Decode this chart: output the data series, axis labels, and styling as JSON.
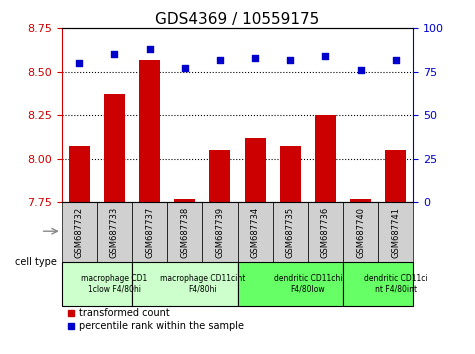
{
  "title": "GDS4369 / 10559175",
  "samples": [
    "GSM687732",
    "GSM687733",
    "GSM687737",
    "GSM687738",
    "GSM687739",
    "GSM687734",
    "GSM687735",
    "GSM687736",
    "GSM687740",
    "GSM687741"
  ],
  "bar_values": [
    8.07,
    8.37,
    8.57,
    7.77,
    8.05,
    8.12,
    8.07,
    8.25,
    7.77,
    8.05
  ],
  "dot_values": [
    80,
    85,
    88,
    77,
    82,
    83,
    82,
    84,
    76,
    82
  ],
  "ylim_left": [
    7.75,
    8.75
  ],
  "ylim_right": [
    0,
    100
  ],
  "yticks_left": [
    7.75,
    8.0,
    8.25,
    8.5,
    8.75
  ],
  "yticks_right": [
    0,
    25,
    50,
    75,
    100
  ],
  "bar_color": "#cc0000",
  "dot_color": "#0000cc",
  "bar_bottom": 7.75,
  "grid_lines": [
    8.0,
    8.25,
    8.5
  ],
  "cell_groups": [
    {
      "label": "macrophage CD1\n1clow F4/80hi",
      "start": 0,
      "end": 2,
      "color": "#ccffcc"
    },
    {
      "label": "macrophage CD11cint\nF4/80hi",
      "start": 2,
      "end": 5,
      "color": "#ccffcc"
    },
    {
      "label": "dendritic CD11chi\nF4/80low",
      "start": 5,
      "end": 8,
      "color": "#66ff66"
    },
    {
      "label": "dendritic CD11ci\nnt F4/80int",
      "start": 8,
      "end": 10,
      "color": "#66ff66"
    }
  ],
  "legend_bar_label": "transformed count",
  "legend_dot_label": "percentile rank within the sample",
  "cell_type_label": "cell type",
  "title_fontsize": 11,
  "tick_fontsize": 8,
  "bar_width": 0.6
}
